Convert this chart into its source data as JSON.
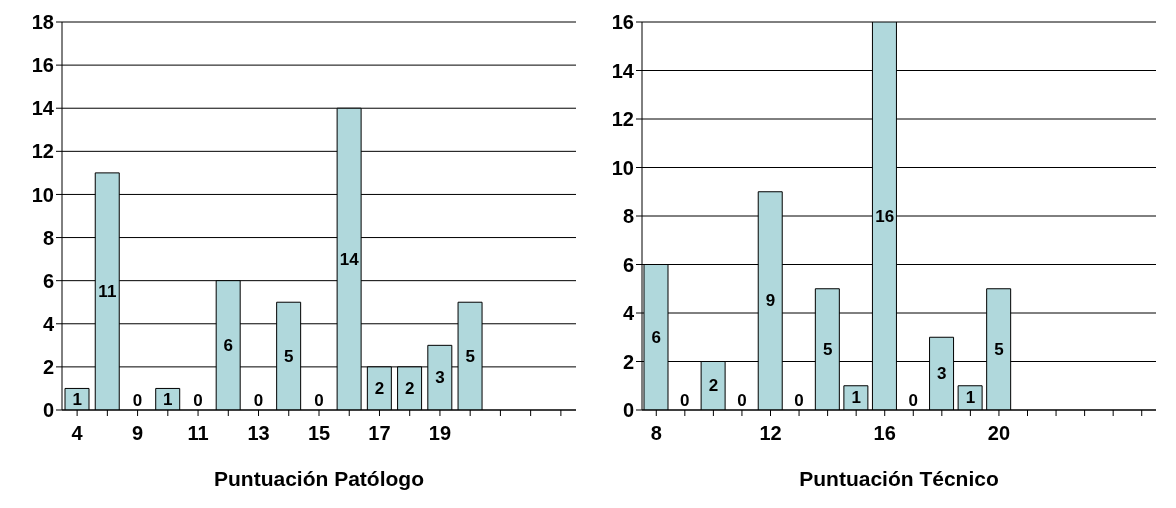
{
  "chart_data": [
    {
      "type": "bar",
      "xlabel": "Puntuación Patólogo",
      "categories": [
        "4",
        null,
        "9",
        null,
        "11",
        null,
        "13",
        null,
        "15",
        null,
        "17",
        null,
        "19",
        null,
        null,
        null,
        null
      ],
      "values": [
        1,
        11,
        0,
        1,
        0,
        6,
        0,
        5,
        0,
        14,
        2,
        2,
        3,
        5,
        null,
        null,
        null
      ],
      "color": "#b0d8dc",
      "ylim": [
        0,
        18
      ],
      "yticks": [
        0,
        2,
        4,
        6,
        8,
        10,
        12,
        14,
        16,
        18
      ],
      "grid": "y",
      "data_labels": true
    },
    {
      "type": "bar",
      "xlabel": "Puntuación Técnico",
      "categories": [
        "8",
        null,
        null,
        null,
        "12",
        null,
        null,
        null,
        "16",
        null,
        null,
        null,
        "20",
        null,
        null,
        null,
        null,
        null
      ],
      "values": [
        6,
        0,
        2,
        0,
        9,
        0,
        5,
        1,
        16,
        0,
        3,
        1,
        5,
        null,
        null,
        null,
        null,
        null
      ],
      "color": "#b0d8dc",
      "ylim": [
        0,
        16
      ],
      "yticks": [
        0,
        2,
        4,
        6,
        8,
        10,
        12,
        14,
        16
      ],
      "grid": "y",
      "data_labels": true
    }
  ]
}
